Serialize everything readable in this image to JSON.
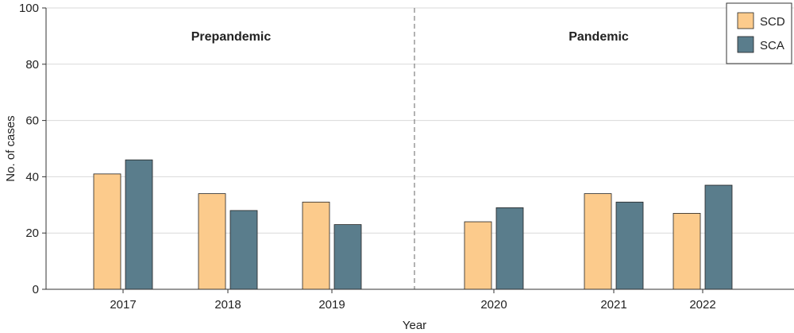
{
  "chart_data": {
    "type": "bar",
    "categories": [
      "2017",
      "2018",
      "2019",
      "2020",
      "2021",
      "2022"
    ],
    "series": [
      {
        "name": "SCD",
        "values": [
          41,
          34,
          31,
          24,
          34,
          27
        ],
        "color": "#fccb8c"
      },
      {
        "name": "SCA",
        "values": [
          46,
          28,
          23,
          29,
          31,
          37
        ],
        "color": "#5a7d8c"
      }
    ],
    "xlabel": "Year",
    "ylabel": "No. of cases",
    "ylim": [
      0,
      100
    ],
    "yticks": [
      0,
      20,
      40,
      60,
      80,
      100
    ],
    "grid": true,
    "legend_position": "top-right",
    "periods": [
      {
        "label": "Prepandemic",
        "categories": [
          "2017",
          "2018",
          "2019"
        ]
      },
      {
        "label": "Pandemic",
        "categories": [
          "2020",
          "2021",
          "2022"
        ]
      }
    ],
    "divider_after": "2019"
  },
  "colors": {
    "grid": "#d9d9d9",
    "axis": "#333333",
    "divider": "#808080",
    "bar_stroke": "#222222"
  }
}
